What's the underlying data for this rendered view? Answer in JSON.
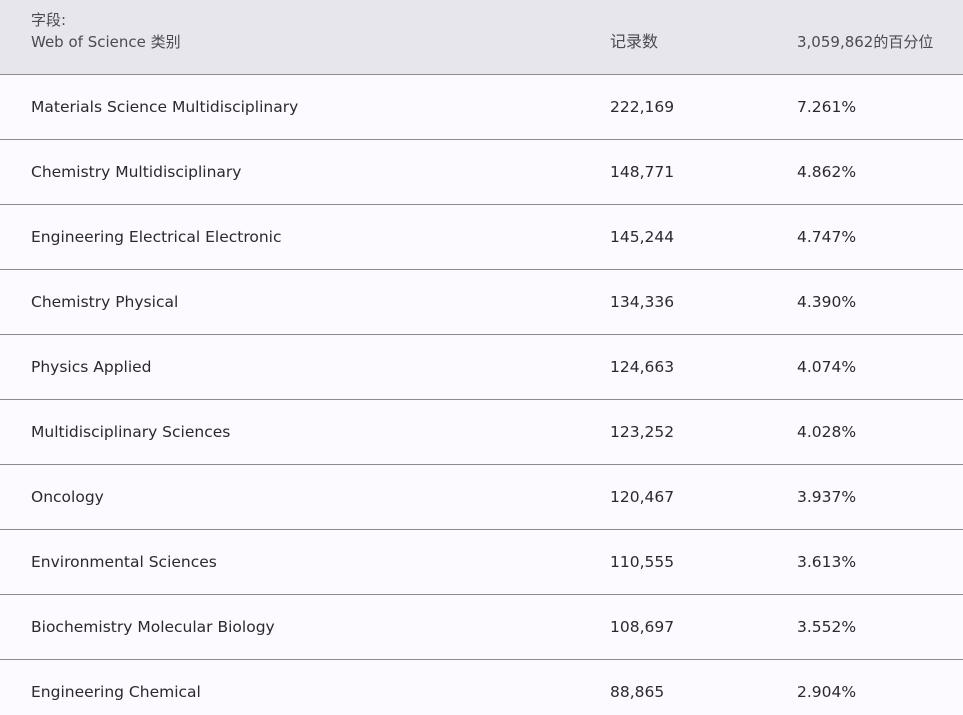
{
  "header": {
    "field_label": "字段:",
    "category_label": "Web of Science 类别",
    "count_label": "记录数",
    "percent_label": "3,059,862的百分位"
  },
  "rows": [
    {
      "category": "Materials Science Multidisciplinary",
      "count": "222,169",
      "percent": "7.261%"
    },
    {
      "category": "Chemistry Multidisciplinary",
      "count": "148,771",
      "percent": "4.862%"
    },
    {
      "category": "Engineering Electrical Electronic",
      "count": "145,244",
      "percent": "4.747%"
    },
    {
      "category": "Chemistry Physical",
      "count": "134,336",
      "percent": "4.390%"
    },
    {
      "category": "Physics Applied",
      "count": "124,663",
      "percent": "4.074%"
    },
    {
      "category": "Multidisciplinary Sciences",
      "count": "123,252",
      "percent": "4.028%"
    },
    {
      "category": "Oncology",
      "count": "120,467",
      "percent": "3.937%"
    },
    {
      "category": "Environmental Sciences",
      "count": "110,555",
      "percent": "3.613%"
    },
    {
      "category": "Biochemistry Molecular Biology",
      "count": "108,697",
      "percent": "3.552%"
    },
    {
      "category": "Engineering Chemical",
      "count": "88,865",
      "percent": "2.904%"
    }
  ]
}
